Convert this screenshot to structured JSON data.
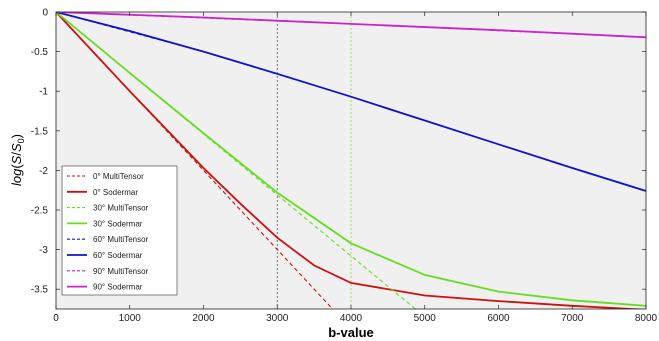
{
  "chart_data": {
    "type": "line",
    "title": "",
    "xlabel": "b-value",
    "ylabel": "log(S/S0)",
    "xlim": [
      0,
      8000
    ],
    "ylim": [
      -3.75,
      0
    ],
    "xticks": [
      0,
      1000,
      2000,
      3000,
      4000,
      5000,
      6000,
      7000,
      8000
    ],
    "xtick_labels": [
      "0",
      "1000",
      "2000",
      "3000",
      "4000",
      "5000",
      "6000",
      "7000",
      "8000"
    ],
    "yticks": [
      0,
      -0.5,
      -1,
      -1.5,
      -2,
      -2.5,
      -3,
      -3.5
    ],
    "ytick_labels": [
      "0",
      "-0.5",
      "-1",
      "-1.5",
      "-2",
      "-2.5",
      "-3",
      "-3.5"
    ],
    "grid": false,
    "background": "#f0f0f0",
    "legend_position": "bottom-left",
    "series": [
      {
        "name": "0° MultiTensor",
        "color": "#cc1111",
        "dash": "dashed",
        "x": [
          0,
          1000,
          2000,
          3000,
          3800
        ],
        "y": [
          0,
          -1.0,
          -2.0,
          -3.0,
          -3.8
        ]
      },
      {
        "name": "0° Sodermar",
        "color": "#cc1111",
        "dash": "solid",
        "x": [
          0,
          1000,
          2000,
          2500,
          3000,
          3500,
          4000,
          5000,
          6000,
          7000,
          8000
        ],
        "y": [
          0,
          -1.0,
          -1.97,
          -2.42,
          -2.85,
          -3.2,
          -3.42,
          -3.58,
          -3.65,
          -3.71,
          -3.76
        ]
      },
      {
        "name": "30° MultiTensor",
        "color": "#66dd22",
        "dash": "dashed",
        "x": [
          0,
          1000,
          2000,
          3000,
          4000,
          4900
        ],
        "y": [
          0,
          -0.77,
          -1.54,
          -2.31,
          -3.08,
          -3.77
        ]
      },
      {
        "name": "30° Sodermar",
        "color": "#66dd22",
        "dash": "solid",
        "x": [
          0,
          1000,
          2000,
          3000,
          4000,
          5000,
          6000,
          7000,
          8000
        ],
        "y": [
          0,
          -0.77,
          -1.53,
          -2.28,
          -2.92,
          -3.32,
          -3.53,
          -3.64,
          -3.71
        ]
      },
      {
        "name": "60° MultiTensor",
        "color": "#1111cc",
        "dash": "dashed",
        "x": [
          0,
          2000,
          4000,
          6000,
          8000
        ],
        "y": [
          0,
          -0.5,
          -1.07,
          -1.67,
          -2.26
        ]
      },
      {
        "name": "60° Sodermar",
        "color": "#1111cc",
        "dash": "solid",
        "x": [
          0,
          1000,
          2000,
          3000,
          4000,
          5000,
          6000,
          7000,
          8000
        ],
        "y": [
          0,
          -0.24,
          -0.5,
          -0.78,
          -1.07,
          -1.37,
          -1.67,
          -1.97,
          -2.26
        ]
      },
      {
        "name": "90° MultiTensor",
        "color": "#cc22cc",
        "dash": "dashed",
        "x": [
          0,
          4000,
          8000
        ],
        "y": [
          0,
          -0.15,
          -0.32
        ]
      },
      {
        "name": "90° Sodermar",
        "color": "#cc22cc",
        "dash": "solid",
        "x": [
          0,
          2000,
          4000,
          6000,
          8000
        ],
        "y": [
          0,
          -0.07,
          -0.15,
          -0.23,
          -0.32
        ]
      }
    ],
    "vertical_markers": [
      {
        "x": 3000,
        "color": "#444444"
      },
      {
        "x": 4000,
        "color": "#66dd22"
      }
    ]
  }
}
